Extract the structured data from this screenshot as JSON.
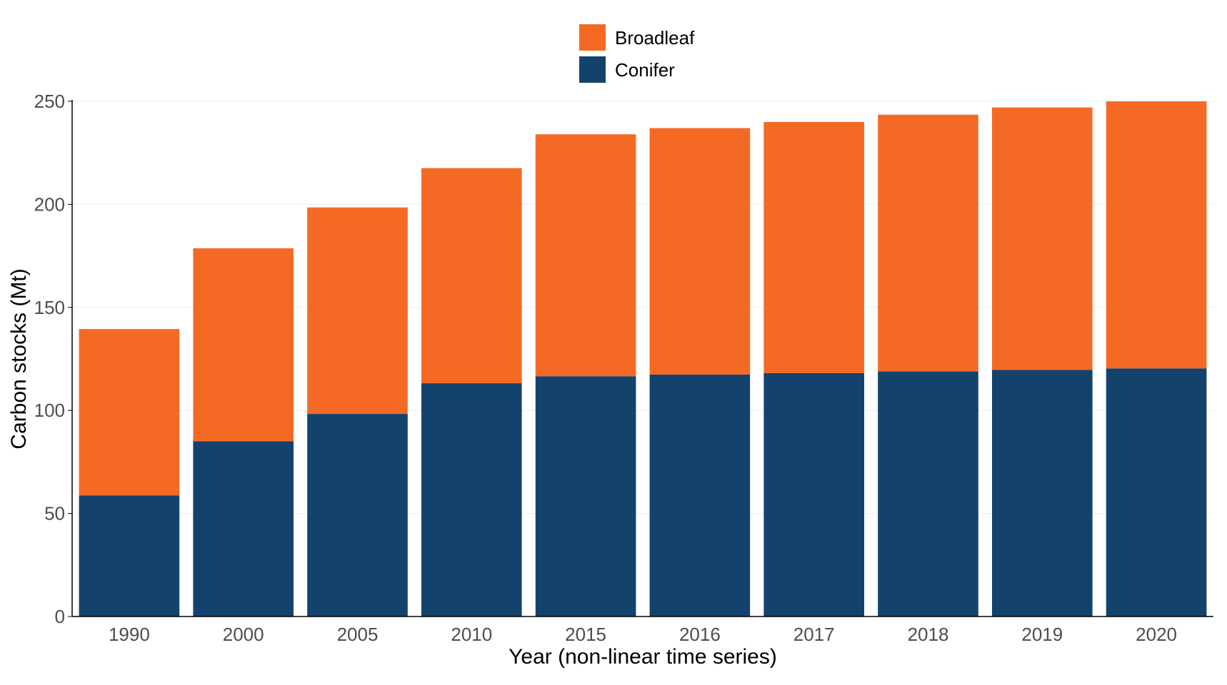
{
  "chart_data": {
    "type": "bar",
    "stacked": true,
    "categories": [
      "1990",
      "2000",
      "2005",
      "2010",
      "2015",
      "2016",
      "2017",
      "2018",
      "2019",
      "2020"
    ],
    "series": [
      {
        "name": "Conifer",
        "color": "#13436c",
        "values": [
          58.7,
          85.0,
          98.3,
          113.2,
          116.6,
          117.4,
          118.1,
          118.9,
          119.7,
          120.4
        ]
      },
      {
        "name": "Broadleaf",
        "color": "#f46a25",
        "values": [
          80.8,
          93.7,
          100.2,
          104.4,
          117.4,
          119.6,
          121.9,
          124.6,
          127.3,
          129.6
        ]
      }
    ],
    "xlabel": "Year (non-linear time series)",
    "ylabel": "Carbon stocks (Mt)",
    "ylim": [
      0,
      250
    ],
    "yticks": [
      0,
      50,
      100,
      150,
      200,
      250
    ],
    "grid": true,
    "legend": {
      "placement": "top-center",
      "entries": [
        "Broadleaf",
        "Conifer"
      ]
    }
  }
}
